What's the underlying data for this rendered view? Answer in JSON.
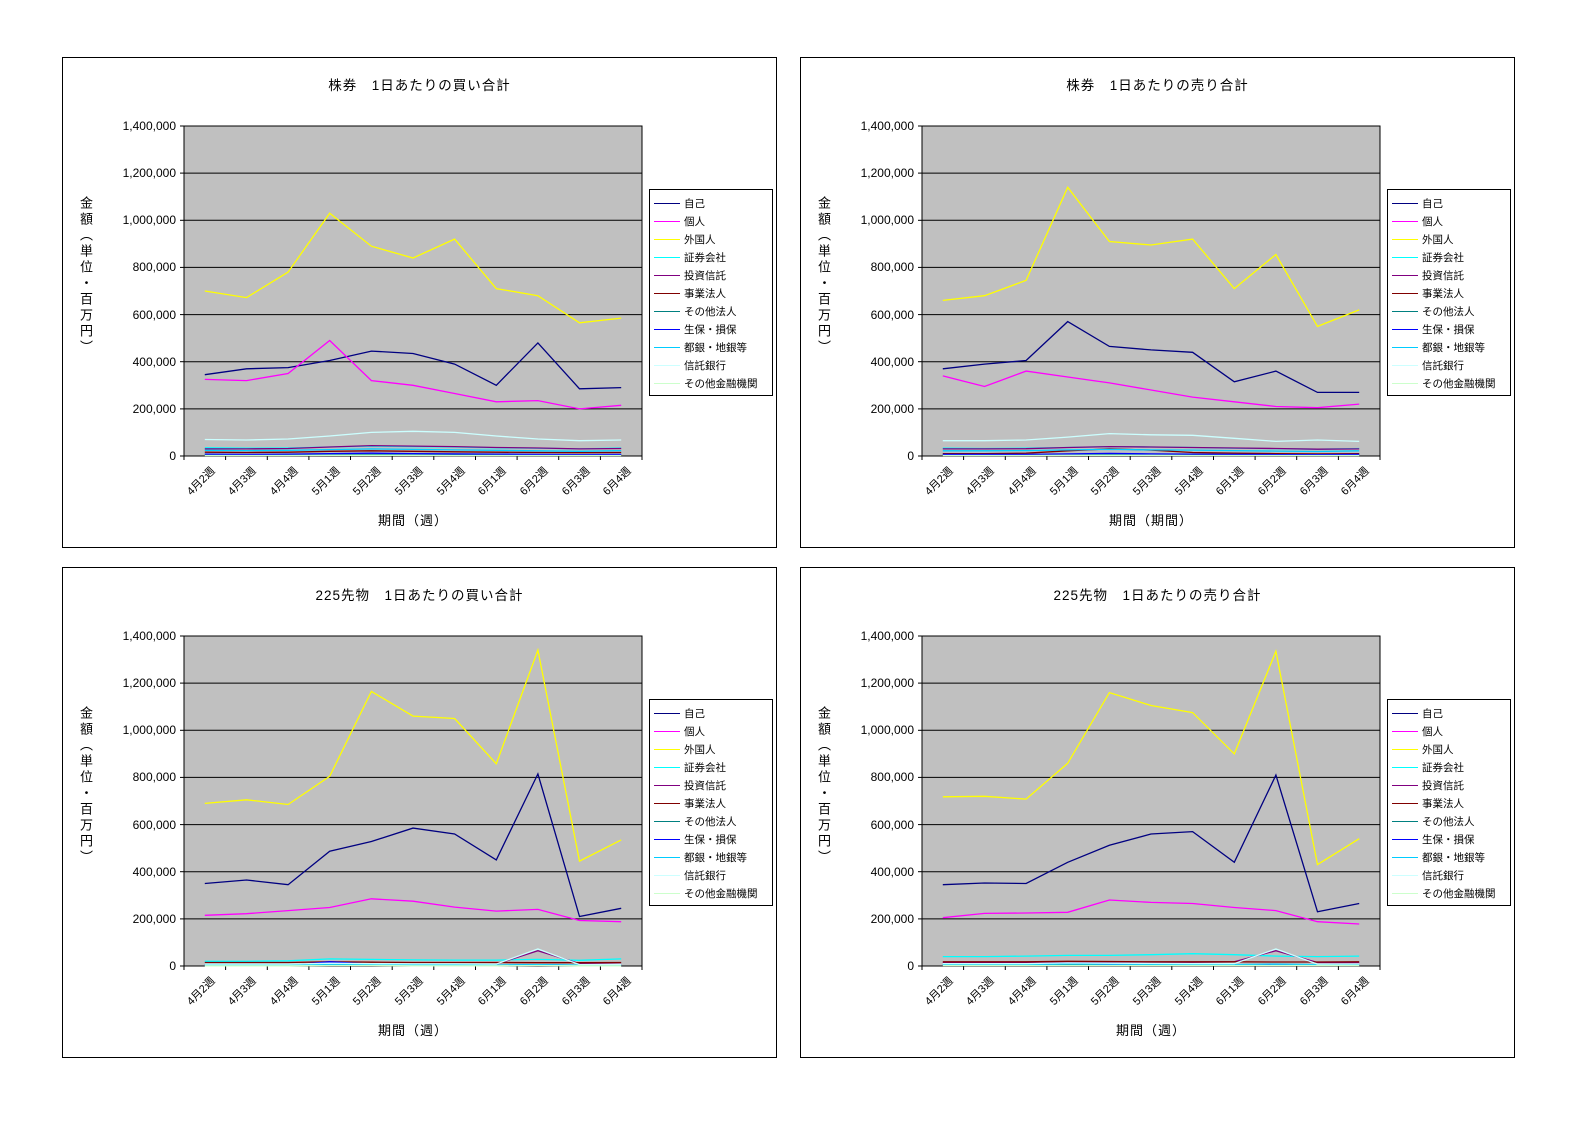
{
  "page_background": "#ffffff",
  "plot_background": "#c0c0c0",
  "gridline_color": "#000000",
  "chart_data": [
    {
      "type": "line",
      "title": "株券　1日あたりの買い合計",
      "xlabel": "期間（週）",
      "ylabel": "金額（単位・百万円）",
      "ylim": [
        0,
        1400000
      ],
      "grid": true,
      "legend_position": "right",
      "ytick_labels": [
        "1,400,000",
        "1,200,000",
        "1,000,000",
        "800,000",
        "600,000",
        "400,000",
        "200,000",
        "0"
      ],
      "categories": [
        "4月2週",
        "4月3週",
        "4月4週",
        "5月1週",
        "5月2週",
        "5月3週",
        "5月4週",
        "6月1週",
        "6月2週",
        "6月3週",
        "6月4週"
      ],
      "series": [
        {
          "name": "自己",
          "color": "#000080",
          "values": [
            345000,
            370000,
            375000,
            405000,
            445000,
            435000,
            390000,
            300000,
            480000,
            285000,
            290000
          ]
        },
        {
          "name": "個人",
          "color": "#FF00FF",
          "values": [
            325000,
            320000,
            350000,
            490000,
            320000,
            300000,
            265000,
            230000,
            235000,
            200000,
            215000
          ]
        },
        {
          "name": "外国人",
          "color": "#FFFF00",
          "values": [
            700000,
            672000,
            780000,
            1030000,
            890000,
            840000,
            920000,
            710000,
            680000,
            565000,
            585000
          ]
        },
        {
          "name": "証券会社",
          "color": "#00FFFF",
          "values": [
            35000,
            33000,
            34000,
            38000,
            42000,
            40000,
            38000,
            35000,
            33000,
            30000,
            34000
          ]
        },
        {
          "name": "投資信託",
          "color": "#800080",
          "values": [
            30000,
            30000,
            32000,
            38000,
            44000,
            42000,
            40000,
            36000,
            34000,
            30000,
            32000
          ]
        },
        {
          "name": "事業法人",
          "color": "#800000",
          "values": [
            16000,
            15000,
            16000,
            20000,
            22000,
            20000,
            18000,
            16000,
            15000,
            14000,
            15000
          ]
        },
        {
          "name": "その他法人",
          "color": "#008080",
          "values": [
            5000,
            5000,
            5000,
            6000,
            7000,
            6000,
            6000,
            5000,
            5000,
            4000,
            5000
          ]
        },
        {
          "name": "生保・損保",
          "color": "#0000FF",
          "values": [
            8000,
            7000,
            8000,
            10000,
            12000,
            10000,
            9000,
            8000,
            7000,
            6000,
            7000
          ]
        },
        {
          "name": "都銀・地銀等",
          "color": "#00CCFF",
          "values": [
            24000,
            23000,
            24000,
            27000,
            30000,
            28000,
            26000,
            24000,
            22000,
            20000,
            23000
          ]
        },
        {
          "name": "信託銀行",
          "color": "#CCFFFF",
          "values": [
            70000,
            68000,
            72000,
            85000,
            100000,
            105000,
            100000,
            85000,
            72000,
            65000,
            68000
          ]
        },
        {
          "name": "その他金融機関",
          "color": "#CCFFCC",
          "values": [
            2000,
            2000,
            2000,
            3000,
            3000,
            3000,
            2000,
            2000,
            2000,
            2000,
            2000
          ]
        }
      ]
    },
    {
      "type": "line",
      "title": "株券　1日あたりの売り合計",
      "xlabel": "期間（期間）",
      "ylabel": "金額（単位・百万円）",
      "ylim": [
        0,
        1400000
      ],
      "grid": true,
      "legend_position": "right",
      "ytick_labels": [
        "1,400,000",
        "1,200,000",
        "1,000,000",
        "800,000",
        "600,000",
        "400,000",
        "200,000",
        "0"
      ],
      "categories": [
        "4月2週",
        "4月3週",
        "4月4週",
        "5月1週",
        "5月2週",
        "5月3週",
        "5月4週",
        "6月1週",
        "6月2週",
        "6月3週",
        "6月4週"
      ],
      "series": [
        {
          "name": "自己",
          "color": "#000080",
          "values": [
            370000,
            390000,
            405000,
            570000,
            465000,
            450000,
            440000,
            315000,
            360000,
            270000,
            270000
          ]
        },
        {
          "name": "個人",
          "color": "#FF00FF",
          "values": [
            340000,
            295000,
            360000,
            335000,
            310000,
            280000,
            250000,
            230000,
            210000,
            205000,
            220000
          ]
        },
        {
          "name": "外国人",
          "color": "#FFFF00",
          "values": [
            660000,
            680000,
            745000,
            1140000,
            910000,
            895000,
            920000,
            710000,
            855000,
            550000,
            620000
          ]
        },
        {
          "name": "証券会社",
          "color": "#00FFFF",
          "values": [
            33000,
            32000,
            33000,
            36000,
            40000,
            38000,
            36000,
            33000,
            31000,
            29000,
            32000
          ]
        },
        {
          "name": "投資信託",
          "color": "#800080",
          "values": [
            30000,
            30000,
            31000,
            36000,
            40000,
            38000,
            36000,
            34000,
            32000,
            29000,
            30000
          ]
        },
        {
          "name": "事業法人",
          "color": "#800000",
          "values": [
            10000,
            10000,
            12000,
            22000,
            30000,
            25000,
            15000,
            12000,
            10000,
            9000,
            10000
          ]
        },
        {
          "name": "その他法人",
          "color": "#008080",
          "values": [
            5000,
            5000,
            5000,
            6000,
            7000,
            6000,
            5000,
            5000,
            4000,
            4000,
            5000
          ]
        },
        {
          "name": "生保・損保",
          "color": "#0000FF",
          "values": [
            7000,
            7000,
            7000,
            9000,
            11000,
            9000,
            8000,
            7000,
            6000,
            6000,
            7000
          ]
        },
        {
          "name": "都銀・地銀等",
          "color": "#00CCFF",
          "values": [
            22000,
            22000,
            23000,
            26000,
            28000,
            26000,
            25000,
            23000,
            21000,
            19000,
            22000
          ]
        },
        {
          "name": "信託銀行",
          "color": "#CCFFFF",
          "values": [
            65000,
            65000,
            68000,
            80000,
            95000,
            90000,
            88000,
            75000,
            62000,
            68000,
            62000
          ]
        },
        {
          "name": "その他金融機関",
          "color": "#CCFFCC",
          "values": [
            2000,
            2000,
            2000,
            3000,
            3000,
            3000,
            2000,
            2000,
            2000,
            2000,
            2000
          ]
        }
      ]
    },
    {
      "type": "line",
      "title": "225先物　1日あたりの買い合計",
      "xlabel": "期間（週）",
      "ylabel": "金額（単位・百万円）",
      "ylim": [
        0,
        1400000
      ],
      "grid": true,
      "legend_position": "right",
      "ytick_labels": [
        "1,400,000",
        "1,200,000",
        "1,000,000",
        "800,000",
        "600,000",
        "400,000",
        "200,000",
        "0"
      ],
      "categories": [
        "4月2週",
        "4月3週",
        "4月4週",
        "5月1週",
        "5月2週",
        "5月3週",
        "5月4週",
        "6月1週",
        "6月2週",
        "6月3週",
        "6月4週"
      ],
      "series": [
        {
          "name": "自己",
          "color": "#000080",
          "values": [
            350000,
            365000,
            345000,
            487000,
            528000,
            585000,
            560000,
            450000,
            815000,
            210000,
            245000
          ]
        },
        {
          "name": "個人",
          "color": "#FF00FF",
          "values": [
            215000,
            222000,
            235000,
            248000,
            285000,
            275000,
            250000,
            233000,
            240000,
            193000,
            188000
          ]
        },
        {
          "name": "外国人",
          "color": "#FFFF00",
          "values": [
            690000,
            705000,
            685000,
            805000,
            1165000,
            1060000,
            1050000,
            858000,
            1340000,
            445000,
            535000
          ]
        },
        {
          "name": "証券会社",
          "color": "#00FFFF",
          "values": [
            20000,
            20000,
            22000,
            30000,
            28000,
            26000,
            25000,
            25000,
            28000,
            24000,
            30000
          ]
        },
        {
          "name": "投資信託",
          "color": "#800080",
          "values": [
            6000,
            6000,
            6000,
            14000,
            9000,
            7000,
            7000,
            8000,
            65000,
            10000,
            8000
          ]
        },
        {
          "name": "事業法人",
          "color": "#800000",
          "values": [
            15000,
            15000,
            15000,
            18000,
            16000,
            15000,
            15000,
            15000,
            14000,
            14000,
            15000
          ]
        },
        {
          "name": "その他法人",
          "color": "#008080",
          "values": [
            2000,
            2000,
            2000,
            3000,
            3000,
            2000,
            2000,
            2000,
            3000,
            2000,
            2000
          ]
        },
        {
          "name": "生保・損保",
          "color": "#0000FF",
          "values": [
            3000,
            3000,
            3000,
            18000,
            8000,
            4000,
            4000,
            3000,
            5000,
            3000,
            3000
          ]
        },
        {
          "name": "都銀・地銀等",
          "color": "#00CCFF",
          "values": [
            4000,
            4000,
            4000,
            8000,
            6000,
            5000,
            5000,
            4000,
            6000,
            4000,
            5000
          ]
        },
        {
          "name": "信託銀行",
          "color": "#CCFFFF",
          "values": [
            8000,
            8000,
            8000,
            12000,
            10000,
            9000,
            9000,
            8000,
            72000,
            6000,
            7000
          ]
        },
        {
          "name": "その他金融機関",
          "color": "#CCFFCC",
          "values": [
            1000,
            1000,
            1000,
            2000,
            2000,
            1000,
            1000,
            1000,
            2000,
            1000,
            1000
          ]
        }
      ]
    },
    {
      "type": "line",
      "title": "225先物　1日あたりの売り合計",
      "xlabel": "期間（週）",
      "ylabel": "金額（単位・百万円）",
      "ylim": [
        0,
        1400000
      ],
      "grid": true,
      "legend_position": "right",
      "ytick_labels": [
        "1,400,000",
        "1,200,000",
        "1,000,000",
        "800,000",
        "600,000",
        "400,000",
        "200,000",
        "0"
      ],
      "categories": [
        "4月2週",
        "4月3週",
        "4月4週",
        "5月1週",
        "5月2週",
        "5月3週",
        "5月4週",
        "6月1週",
        "6月2週",
        "6月3週",
        "6月4週"
      ],
      "series": [
        {
          "name": "自己",
          "color": "#000080",
          "values": [
            345000,
            352000,
            350000,
            440000,
            512000,
            560000,
            570000,
            440000,
            810000,
            230000,
            265000
          ]
        },
        {
          "name": "個人",
          "color": "#FF00FF",
          "values": [
            205000,
            223000,
            225000,
            228000,
            280000,
            270000,
            265000,
            248000,
            235000,
            188000,
            178000
          ]
        },
        {
          "name": "外国人",
          "color": "#FFFF00",
          "values": [
            718000,
            720000,
            708000,
            860000,
            1160000,
            1105000,
            1075000,
            900000,
            1335000,
            430000,
            540000
          ]
        },
        {
          "name": "証券会社",
          "color": "#00FFFF",
          "values": [
            40000,
            40000,
            42000,
            45000,
            45000,
            48000,
            52000,
            48000,
            42000,
            40000,
            42000
          ]
        },
        {
          "name": "投資信託",
          "color": "#800080",
          "values": [
            15000,
            15000,
            15000,
            18000,
            18000,
            16000,
            16000,
            18000,
            65000,
            15000,
            14000
          ]
        },
        {
          "name": "事業法人",
          "color": "#800000",
          "values": [
            18000,
            18000,
            18000,
            20000,
            19000,
            18000,
            18000,
            18000,
            17000,
            17000,
            18000
          ]
        },
        {
          "name": "その他法人",
          "color": "#008080",
          "values": [
            3000,
            3000,
            3000,
            4000,
            4000,
            3000,
            3000,
            3000,
            4000,
            3000,
            3000
          ]
        },
        {
          "name": "生保・損保",
          "color": "#0000FF",
          "values": [
            4000,
            4000,
            4000,
            12000,
            7000,
            5000,
            5000,
            4000,
            6000,
            4000,
            4000
          ]
        },
        {
          "name": "都銀・地銀等",
          "color": "#00CCFF",
          "values": [
            6000,
            6000,
            6000,
            9000,
            8000,
            7000,
            7000,
            6000,
            8000,
            6000,
            6000
          ]
        },
        {
          "name": "信託銀行",
          "color": "#CCFFFF",
          "values": [
            10000,
            10000,
            10000,
            13000,
            12000,
            11000,
            10000,
            10000,
            72000,
            8000,
            9000
          ]
        },
        {
          "name": "その他金融機関",
          "color": "#CCFFCC",
          "values": [
            2000,
            2000,
            2000,
            2000,
            2000,
            2000,
            2000,
            2000,
            2000,
            2000,
            2000
          ]
        }
      ]
    }
  ]
}
